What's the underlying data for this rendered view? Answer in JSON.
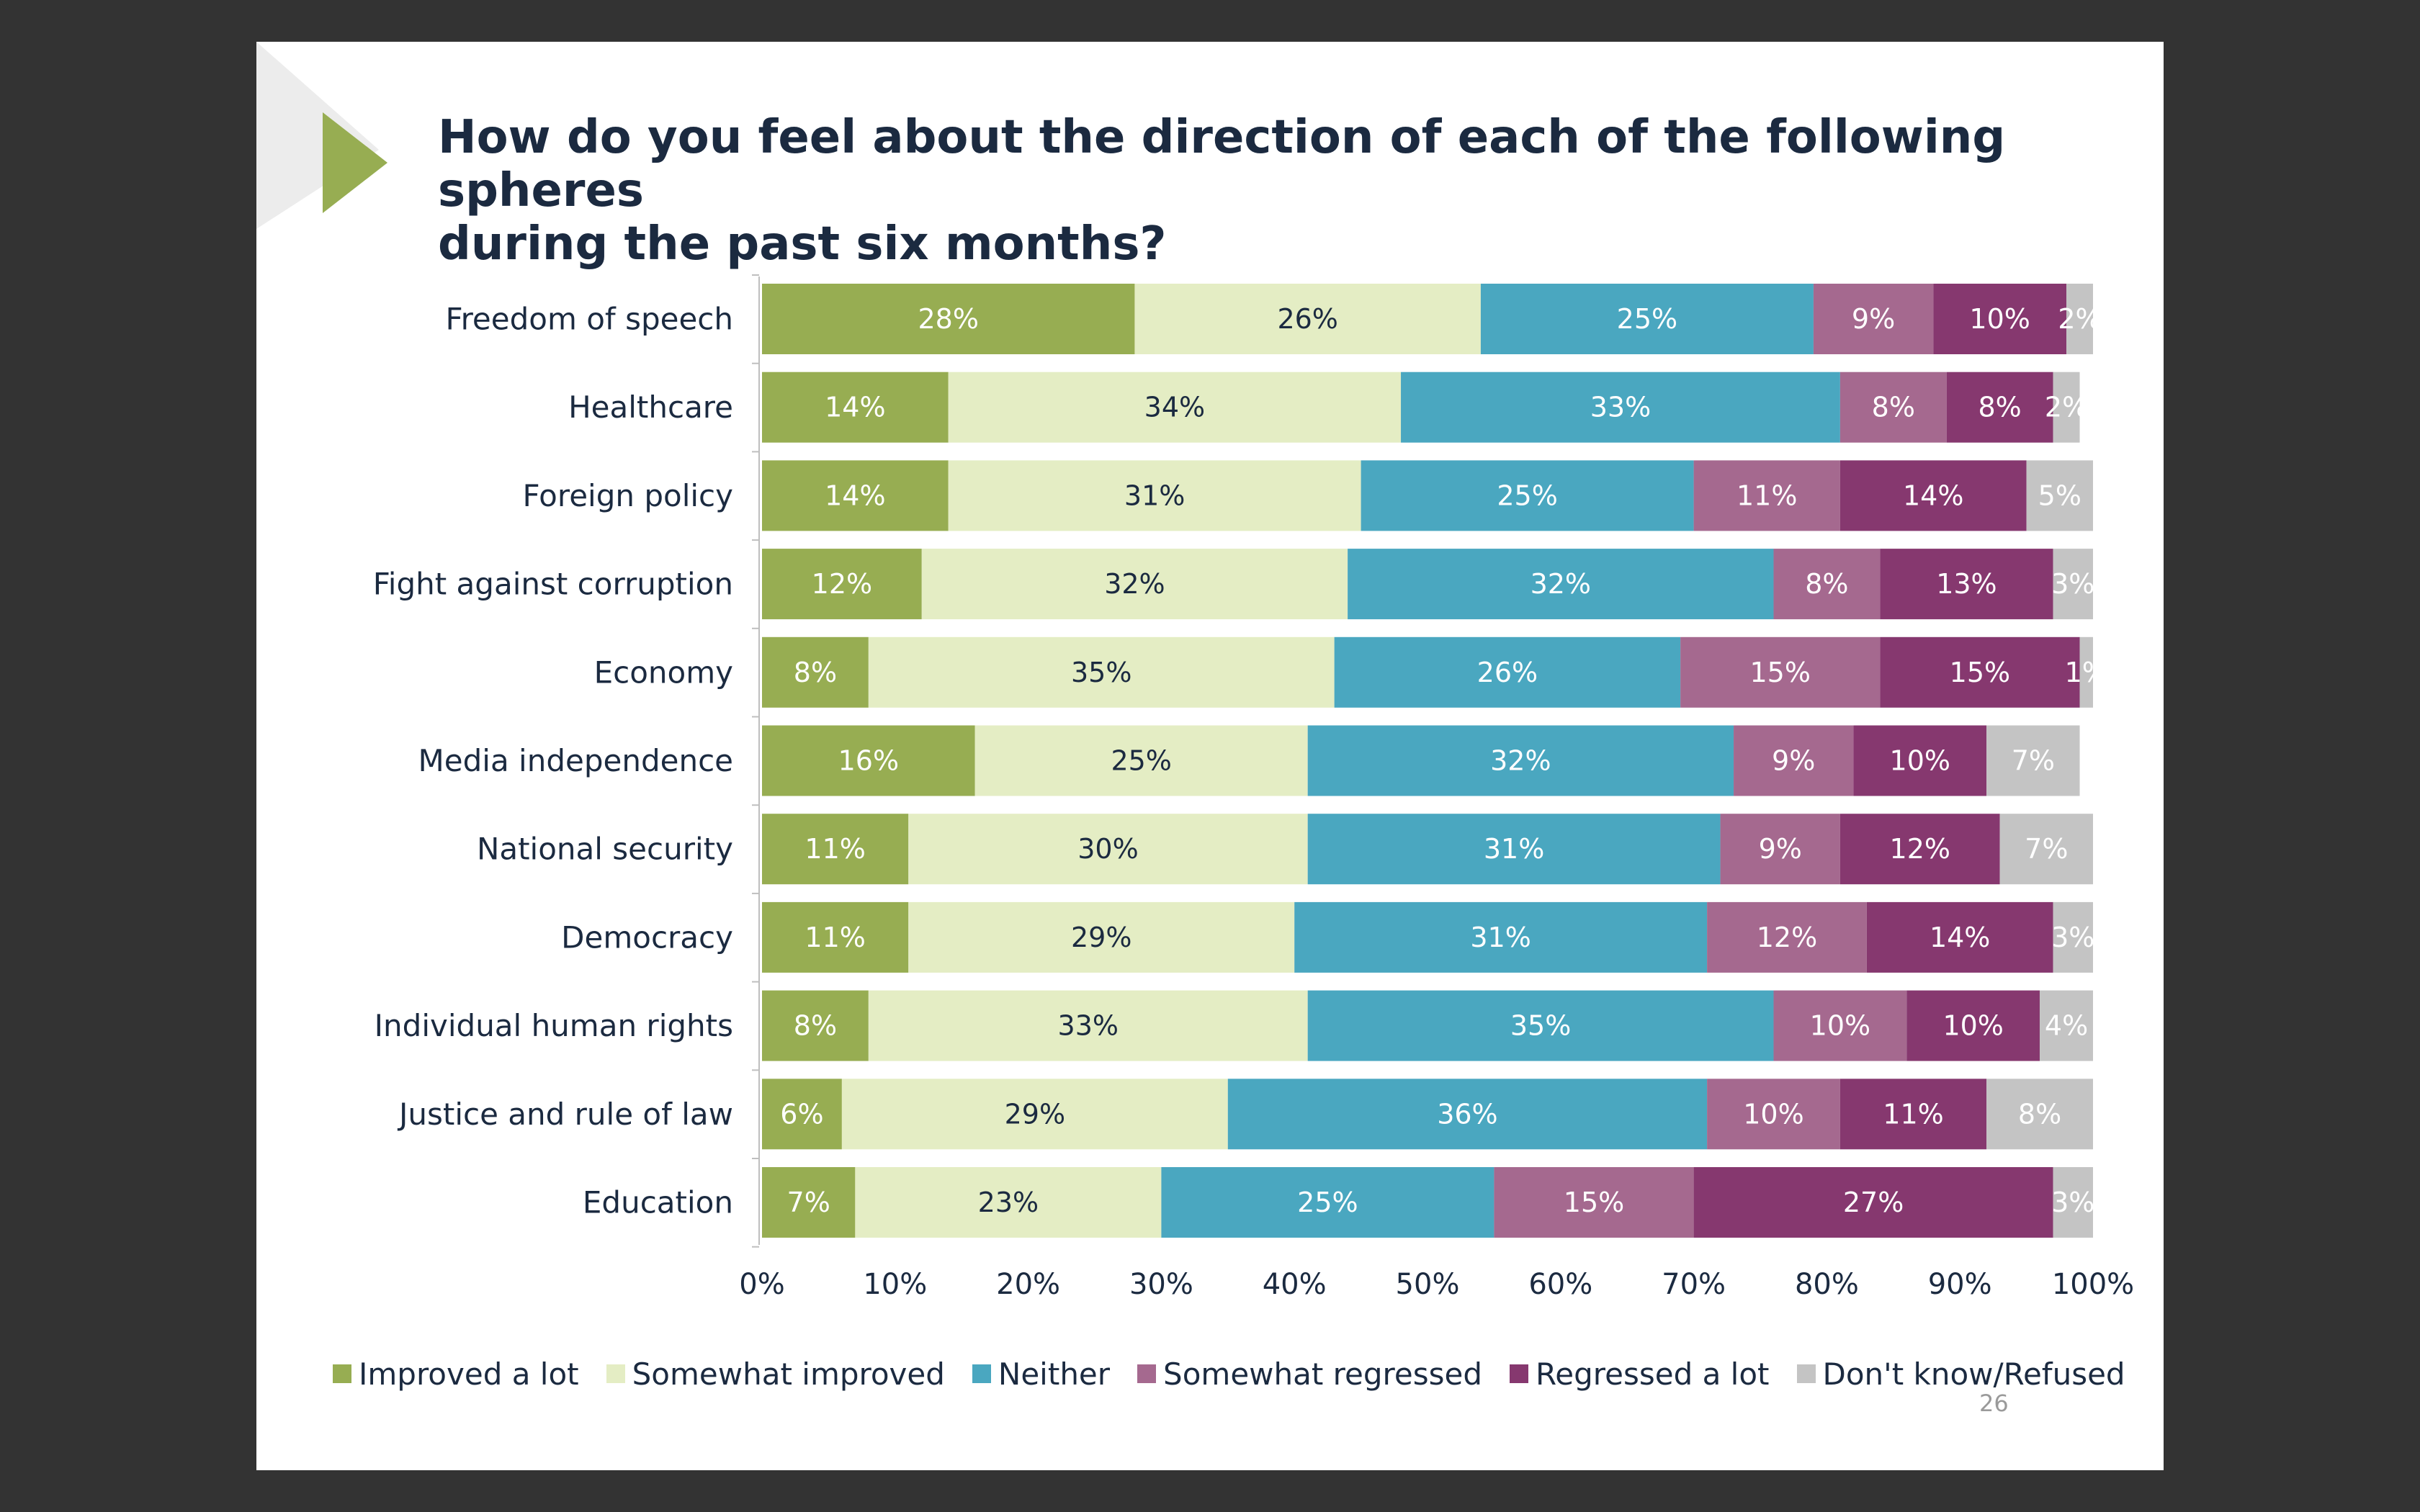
{
  "title_line1": "How do you feel about the direction of each of the following spheres",
  "title_line2": "during the past six months?",
  "page_number": "26",
  "colors": {
    "improved_a_lot": "#97ad52",
    "somewhat_improved": "#e4edc4",
    "neither": "#4aa7c0",
    "somewhat_regressed": "#a5698f",
    "regressed_a_lot": "#86386f",
    "dont_know": "#c4c4c4",
    "title": "#1b2a40",
    "accent_triangle": "#97ad52"
  },
  "legend": [
    {
      "label": "Improved a lot",
      "color": "#97ad52"
    },
    {
      "label": "Somewhat improved",
      "color": "#e4edc4"
    },
    {
      "label": "Neither",
      "color": "#4aa7c0"
    },
    {
      "label": "Somewhat regressed",
      "color": "#a5698f"
    },
    {
      "label": "Regressed a lot",
      "color": "#86386f"
    },
    {
      "label": "Don't know/Refused",
      "color": "#c4c4c4"
    }
  ],
  "chart_data": {
    "type": "bar",
    "orientation": "horizontal",
    "stacked": "100%",
    "title": "How do you feel about the direction of each of the following spheres during the past six months?",
    "categories": [
      "Freedom of speech",
      "Healthcare",
      "Foreign policy",
      "Fight against corruption",
      "Economy",
      "Media independence",
      "National security",
      "Democracy",
      "Individual human rights",
      "Justice and rule of law",
      "Education"
    ],
    "series": [
      {
        "name": "Improved a lot",
        "color": "#97ad52",
        "label_color": "#ffffff",
        "values": [
          28,
          14,
          14,
          12,
          8,
          16,
          11,
          11,
          8,
          6,
          7
        ]
      },
      {
        "name": "Somewhat improved",
        "color": "#e4edc4",
        "label_color": "#1b2a40",
        "values": [
          26,
          34,
          31,
          32,
          35,
          25,
          30,
          29,
          33,
          29,
          23
        ]
      },
      {
        "name": "Neither",
        "color": "#4aa7c0",
        "label_color": "#ffffff",
        "values": [
          25,
          33,
          25,
          32,
          26,
          32,
          31,
          31,
          35,
          36,
          25
        ]
      },
      {
        "name": "Somewhat regressed",
        "color": "#a5698f",
        "label_color": "#ffffff",
        "values": [
          9,
          8,
          11,
          8,
          15,
          9,
          9,
          12,
          10,
          10,
          15
        ]
      },
      {
        "name": "Regressed a lot",
        "color": "#86386f",
        "label_color": "#ffffff",
        "values": [
          10,
          8,
          14,
          13,
          15,
          10,
          12,
          14,
          10,
          11,
          27
        ]
      },
      {
        "name": "Don't know/Refused",
        "color": "#c4c4c4",
        "label_color": "#ffffff",
        "values": [
          2,
          2,
          5,
          3,
          1,
          7,
          7,
          3,
          4,
          8,
          3
        ]
      }
    ],
    "x_ticks": [
      "0%",
      "10%",
      "20%",
      "30%",
      "40%",
      "50%",
      "60%",
      "70%",
      "80%",
      "90%",
      "100%"
    ],
    "xlim": [
      0,
      100
    ],
    "legend_position": "bottom",
    "grid": false
  }
}
